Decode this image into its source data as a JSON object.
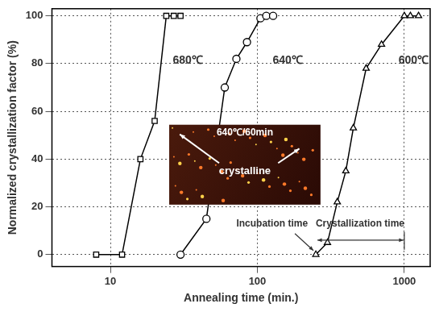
{
  "chart_data": {
    "type": "line",
    "log": "x",
    "grid": true,
    "xlabel": "Annealing time (min.)",
    "ylabel": "Normalized crystallization factor (%)",
    "xlim": [
      4,
      1500
    ],
    "ylim": [
      -5,
      103
    ],
    "xticks": [
      10,
      100,
      1000
    ],
    "yticks": [
      0,
      20,
      40,
      60,
      80,
      100
    ],
    "series": [
      {
        "name": "680℃",
        "color": "#000000",
        "marker": "square",
        "line_style": "solid",
        "x": [
          8,
          12,
          16,
          20,
          24,
          27,
          30
        ],
        "values": [
          0,
          0,
          40,
          56,
          100,
          100,
          100
        ]
      },
      {
        "name": "640℃",
        "color": "#000000",
        "marker": "circle",
        "line_style": "solid",
        "x": [
          30,
          45,
          60,
          72,
          85,
          105,
          115,
          128
        ],
        "values": [
          0,
          15,
          70,
          82,
          89,
          99,
          100,
          100
        ]
      },
      {
        "name": "600℃",
        "color": "#000000",
        "marker": "triangle",
        "line_style": "solid",
        "x": [
          250,
          300,
          350,
          400,
          450,
          550,
          700,
          1000,
          1100,
          1250
        ],
        "values": [
          0,
          5,
          22,
          35,
          53,
          78,
          88,
          100,
          100,
          100
        ]
      }
    ],
    "annotations": [
      {
        "text": "Incubation time"
      },
      {
        "text": "Crystallization time"
      }
    ],
    "inset": {
      "title": "640℃/60min",
      "label": "crystalline"
    }
  }
}
